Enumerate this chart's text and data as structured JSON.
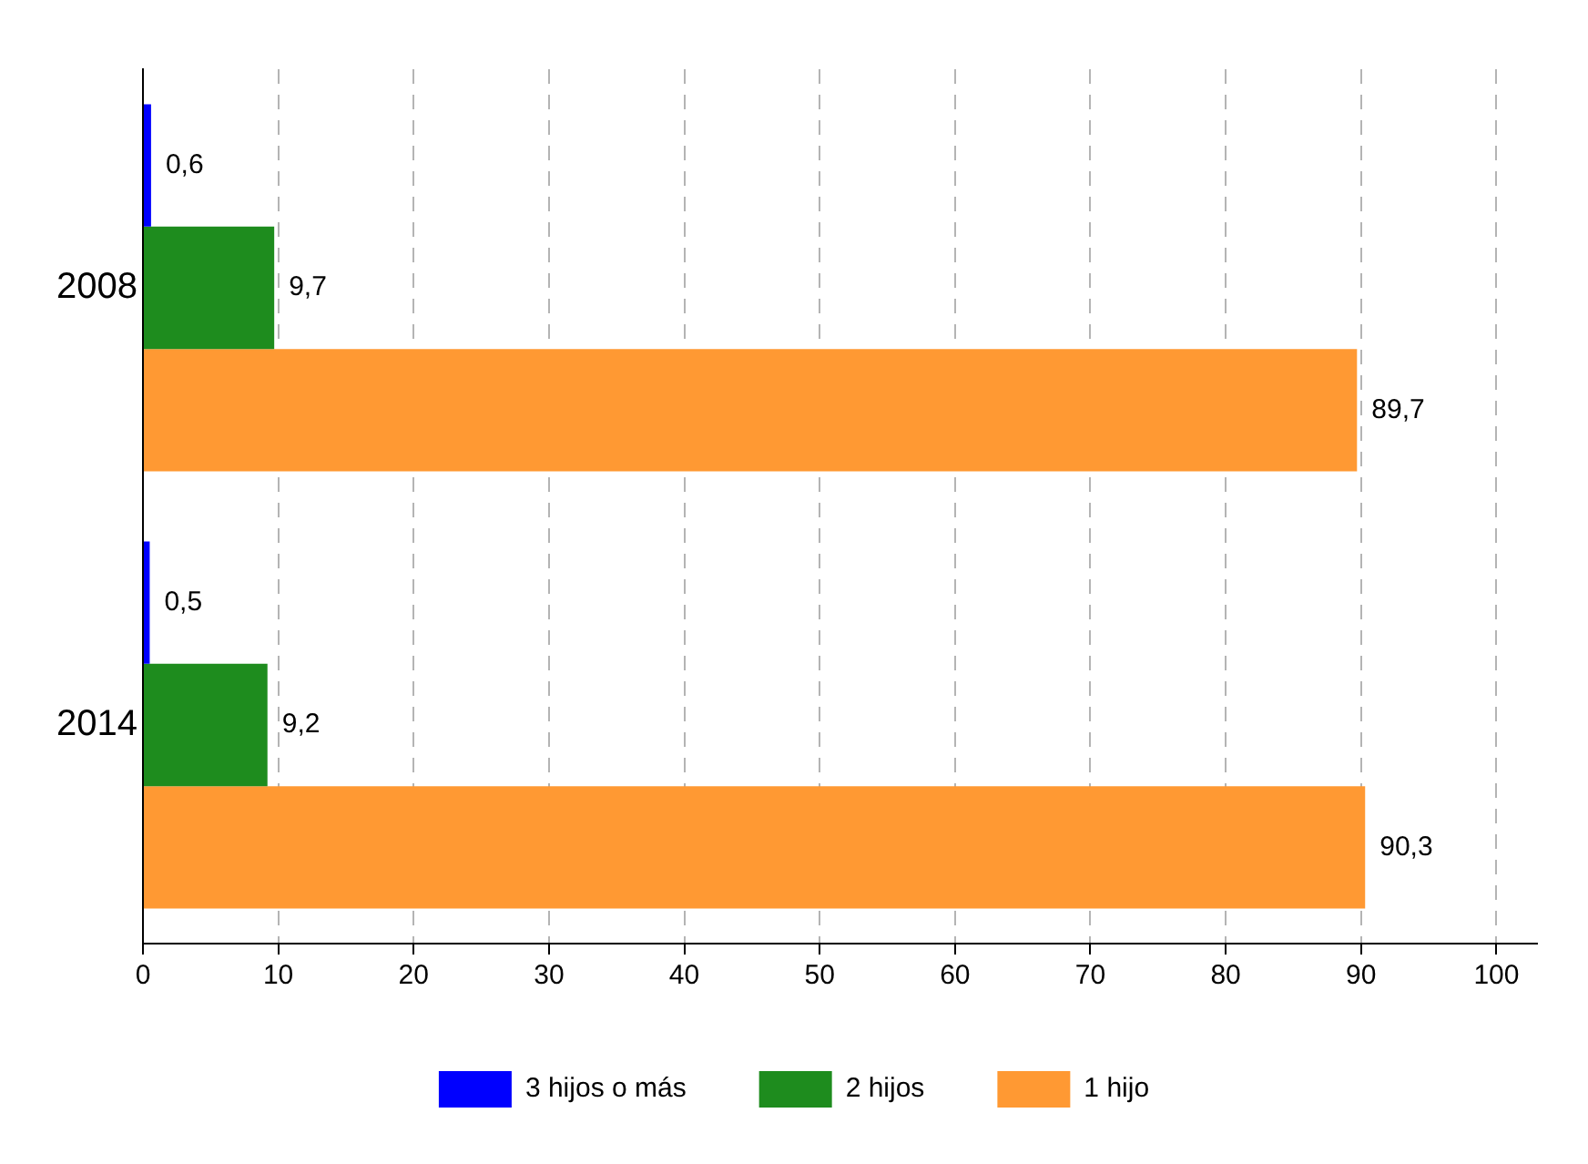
{
  "chart_data": {
    "type": "bar",
    "orientation": "horizontal",
    "categories": [
      "2008",
      "2014"
    ],
    "series": [
      {
        "name": "3 hijos o más",
        "color": "#0000ff",
        "values": [
          0.6,
          0.5
        ],
        "value_labels": [
          "0,6",
          "0,5"
        ]
      },
      {
        "name": "2 hijos",
        "color": "#1e8c1e",
        "values": [
          9.7,
          9.2
        ],
        "value_labels": [
          "9,7",
          "9,2"
        ]
      },
      {
        "name": "1 hijo",
        "color": "#ff9933",
        "values": [
          89.7,
          90.3
        ],
        "value_labels": [
          "89,7",
          "90,3"
        ]
      }
    ],
    "xlim": [
      0,
      103
    ],
    "xticks": [
      0,
      10,
      20,
      30,
      40,
      50,
      60,
      70,
      80,
      90,
      100
    ],
    "grid": "x",
    "legend": "bottom"
  }
}
